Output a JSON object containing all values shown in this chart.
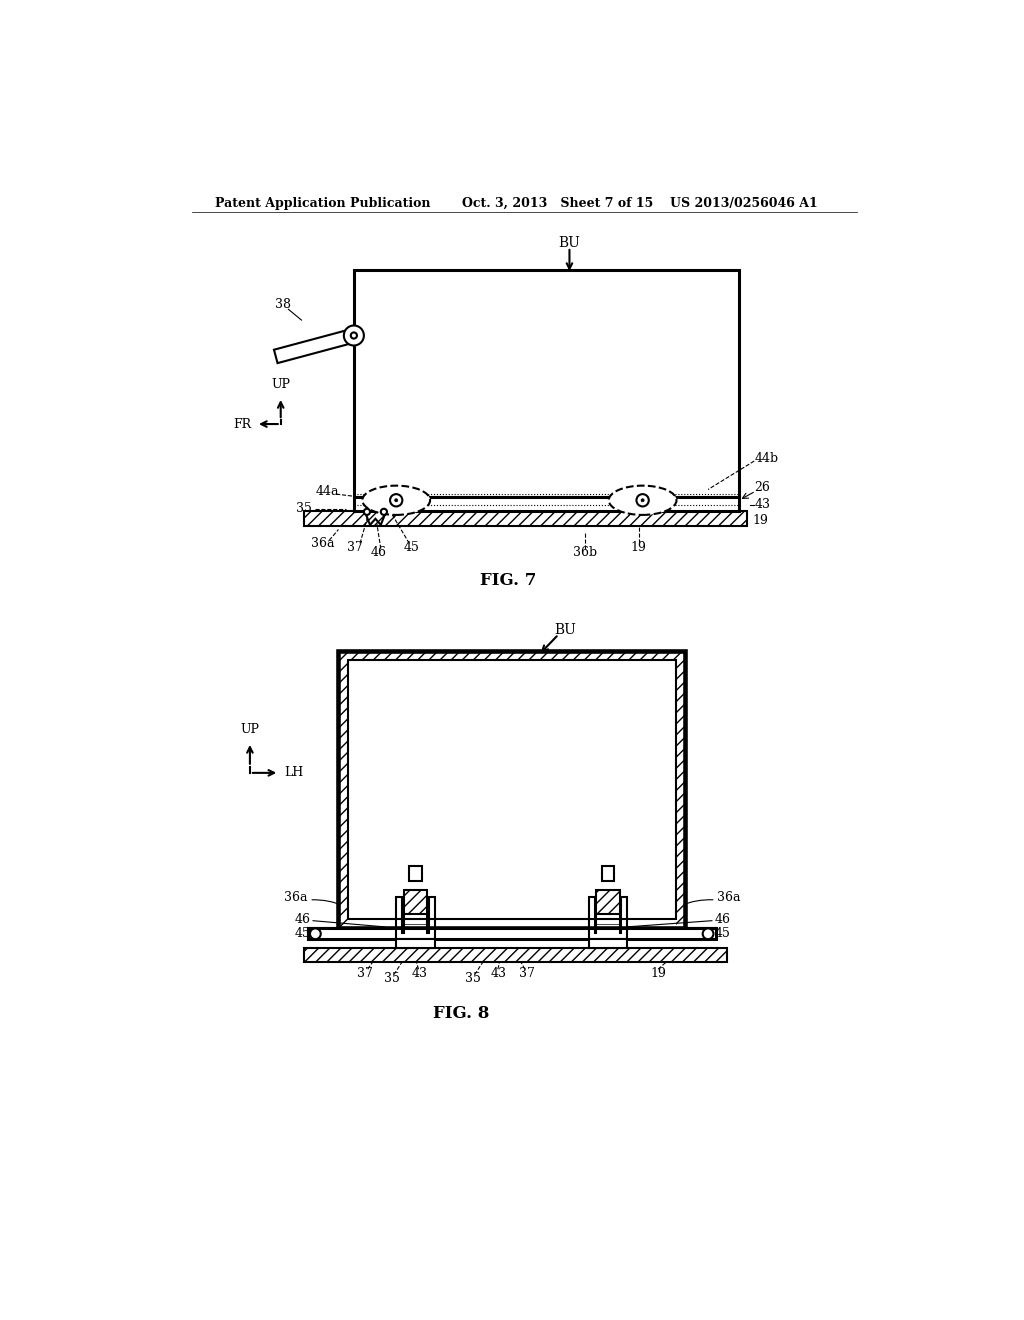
{
  "bg_color": "#ffffff",
  "line_color": "#000000",
  "header_left": "Patent Application Publication",
  "header_mid": "Oct. 3, 2013   Sheet 7 of 15",
  "header_right": "US 2013/0256046 A1",
  "fig7_title": "FIG. 7",
  "fig8_title": "FIG. 8"
}
